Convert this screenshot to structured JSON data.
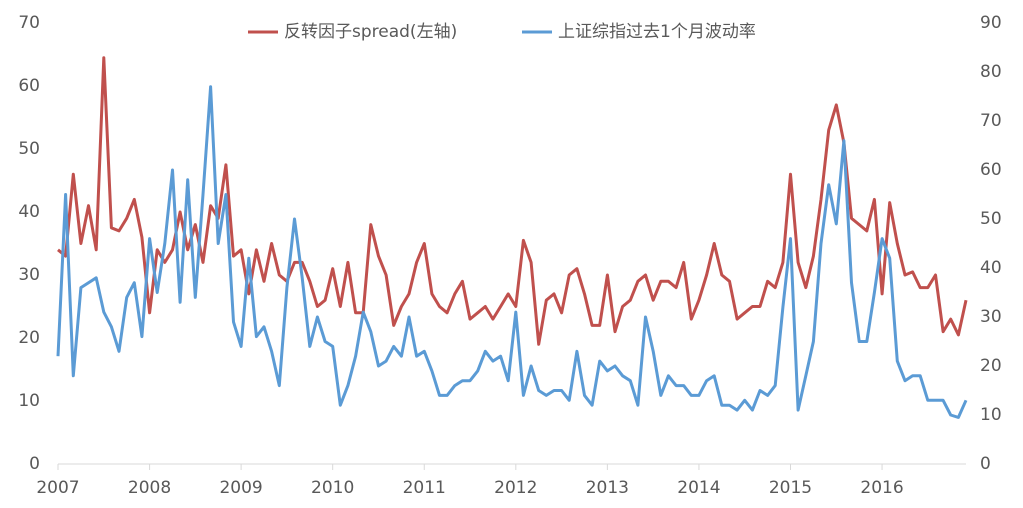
{
  "chart_data": {
    "type": "line",
    "categories": [
      "2007",
      null,
      null,
      null,
      null,
      null,
      null,
      null,
      null,
      null,
      null,
      null,
      "2008",
      null,
      null,
      null,
      null,
      null,
      null,
      null,
      null,
      null,
      null,
      null,
      "2009",
      null,
      null,
      null,
      null,
      null,
      null,
      null,
      null,
      null,
      null,
      null,
      "2010",
      null,
      null,
      null,
      null,
      null,
      null,
      null,
      null,
      null,
      null,
      null,
      "2011",
      null,
      null,
      null,
      null,
      null,
      null,
      null,
      null,
      null,
      null,
      null,
      "2012",
      null,
      null,
      null,
      null,
      null,
      null,
      null,
      null,
      null,
      null,
      null,
      "2013",
      null,
      null,
      null,
      null,
      null,
      null,
      null,
      null,
      null,
      null,
      null,
      "2014",
      null,
      null,
      null,
      null,
      null,
      null,
      null,
      null,
      null,
      null,
      null,
      "2015",
      null,
      null,
      null,
      null,
      null,
      null,
      null,
      null,
      null,
      null,
      null,
      "2016",
      null,
      null,
      null,
      null,
      null,
      null,
      null,
      null,
      null,
      null,
      null
    ],
    "series": [
      {
        "name": "反转因子spread(左轴)",
        "color": "#c0504d",
        "axis": "y",
        "values": [
          34,
          33,
          46,
          35,
          41,
          34,
          64.5,
          37.5,
          37,
          39,
          42,
          36,
          24,
          34,
          32,
          34,
          40,
          34,
          38,
          32,
          41,
          39,
          47.5,
          33,
          34,
          27,
          34,
          29,
          35,
          30,
          29,
          32,
          32,
          29,
          25,
          26,
          31,
          25,
          32,
          24,
          24,
          38,
          33,
          30,
          22,
          25,
          27,
          32,
          35,
          27,
          25,
          24,
          27,
          29,
          23,
          24,
          25,
          23,
          25,
          27,
          25,
          35.5,
          32,
          19,
          26,
          27,
          24,
          30,
          31,
          27,
          22,
          22,
          30,
          21,
          25,
          26,
          29,
          30,
          26,
          29,
          29,
          28,
          32,
          23,
          26,
          30,
          35,
          30,
          29,
          23,
          24,
          25,
          25,
          29,
          28,
          32,
          46,
          32,
          28,
          33,
          42,
          53,
          57,
          51,
          39,
          38,
          37,
          42,
          27,
          41.5,
          35,
          30,
          30.5,
          28,
          28,
          30,
          21,
          23,
          20.5,
          26
        ]
      },
      {
        "name": "上证综指过去1个月波动率",
        "color": "#5b9bd5",
        "axis": "y2",
        "values": [
          22,
          55,
          18,
          36,
          37,
          38,
          31,
          28,
          23,
          34,
          37,
          26,
          46,
          35,
          45,
          60,
          33,
          58,
          34,
          55,
          77,
          45,
          55,
          29,
          24,
          42,
          26,
          28,
          23,
          16,
          36,
          50,
          38,
          24,
          30,
          25,
          24,
          12,
          16,
          22,
          31,
          27,
          20,
          21,
          24,
          22,
          30,
          22,
          23,
          19,
          14,
          14,
          16,
          17,
          17,
          19,
          23,
          21,
          22,
          17,
          31,
          14,
          20,
          15,
          14,
          15,
          15,
          13,
          23,
          14,
          12,
          21,
          19,
          20,
          18,
          17,
          12,
          30,
          23,
          14,
          18,
          16,
          16,
          14,
          14,
          17,
          18,
          12,
          12,
          11,
          13,
          11,
          15,
          14,
          16,
          32,
          46,
          11,
          18,
          25,
          45,
          57,
          49,
          66,
          37,
          25,
          25,
          35,
          46,
          42,
          21,
          17,
          18,
          18,
          13,
          13,
          13,
          10,
          9.5,
          13
        ]
      }
    ],
    "ylim": [
      0,
      70
    ],
    "yticks": [
      0,
      10,
      20,
      30,
      40,
      50,
      60,
      70
    ],
    "y2lim": [
      0,
      90
    ],
    "y2ticks": [
      0,
      10,
      20,
      30,
      40,
      50,
      60,
      70,
      80,
      90
    ],
    "legend": "top"
  }
}
